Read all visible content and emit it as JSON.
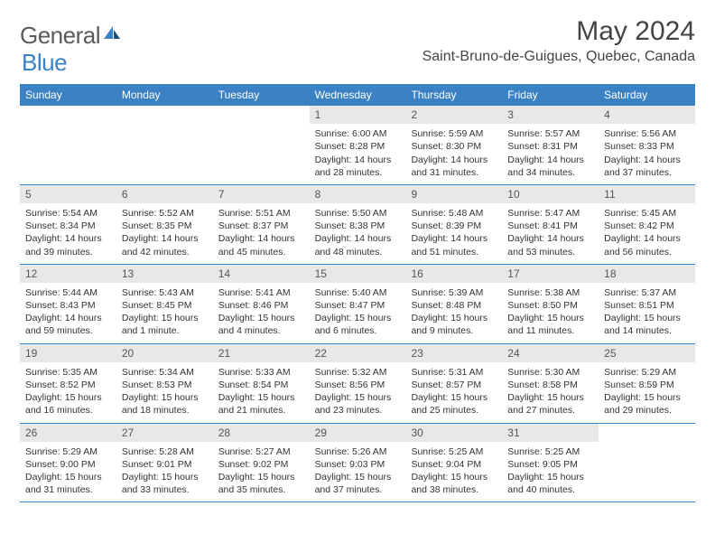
{
  "logo": {
    "text1": "General",
    "text2": "Blue"
  },
  "title": "May 2024",
  "location": "Saint-Bruno-de-Guigues, Quebec, Canada",
  "weekdays": [
    "Sunday",
    "Monday",
    "Tuesday",
    "Wednesday",
    "Thursday",
    "Friday",
    "Saturday"
  ],
  "colors": {
    "header_bg": "#3b82c4",
    "header_text": "#ffffff",
    "day_header_bg": "#e8e8e8",
    "border": "#3b82c4",
    "body_text": "#333333"
  },
  "weeks": [
    [
      {
        "n": "",
        "empty": true
      },
      {
        "n": "",
        "empty": true
      },
      {
        "n": "",
        "empty": true
      },
      {
        "n": "1",
        "sunrise": "Sunrise: 6:00 AM",
        "sunset": "Sunset: 8:28 PM",
        "daylight1": "Daylight: 14 hours",
        "daylight2": "and 28 minutes."
      },
      {
        "n": "2",
        "sunrise": "Sunrise: 5:59 AM",
        "sunset": "Sunset: 8:30 PM",
        "daylight1": "Daylight: 14 hours",
        "daylight2": "and 31 minutes."
      },
      {
        "n": "3",
        "sunrise": "Sunrise: 5:57 AM",
        "sunset": "Sunset: 8:31 PM",
        "daylight1": "Daylight: 14 hours",
        "daylight2": "and 34 minutes."
      },
      {
        "n": "4",
        "sunrise": "Sunrise: 5:56 AM",
        "sunset": "Sunset: 8:33 PM",
        "daylight1": "Daylight: 14 hours",
        "daylight2": "and 37 minutes."
      }
    ],
    [
      {
        "n": "5",
        "sunrise": "Sunrise: 5:54 AM",
        "sunset": "Sunset: 8:34 PM",
        "daylight1": "Daylight: 14 hours",
        "daylight2": "and 39 minutes."
      },
      {
        "n": "6",
        "sunrise": "Sunrise: 5:52 AM",
        "sunset": "Sunset: 8:35 PM",
        "daylight1": "Daylight: 14 hours",
        "daylight2": "and 42 minutes."
      },
      {
        "n": "7",
        "sunrise": "Sunrise: 5:51 AM",
        "sunset": "Sunset: 8:37 PM",
        "daylight1": "Daylight: 14 hours",
        "daylight2": "and 45 minutes."
      },
      {
        "n": "8",
        "sunrise": "Sunrise: 5:50 AM",
        "sunset": "Sunset: 8:38 PM",
        "daylight1": "Daylight: 14 hours",
        "daylight2": "and 48 minutes."
      },
      {
        "n": "9",
        "sunrise": "Sunrise: 5:48 AM",
        "sunset": "Sunset: 8:39 PM",
        "daylight1": "Daylight: 14 hours",
        "daylight2": "and 51 minutes."
      },
      {
        "n": "10",
        "sunrise": "Sunrise: 5:47 AM",
        "sunset": "Sunset: 8:41 PM",
        "daylight1": "Daylight: 14 hours",
        "daylight2": "and 53 minutes."
      },
      {
        "n": "11",
        "sunrise": "Sunrise: 5:45 AM",
        "sunset": "Sunset: 8:42 PM",
        "daylight1": "Daylight: 14 hours",
        "daylight2": "and 56 minutes."
      }
    ],
    [
      {
        "n": "12",
        "sunrise": "Sunrise: 5:44 AM",
        "sunset": "Sunset: 8:43 PM",
        "daylight1": "Daylight: 14 hours",
        "daylight2": "and 59 minutes."
      },
      {
        "n": "13",
        "sunrise": "Sunrise: 5:43 AM",
        "sunset": "Sunset: 8:45 PM",
        "daylight1": "Daylight: 15 hours",
        "daylight2": "and 1 minute."
      },
      {
        "n": "14",
        "sunrise": "Sunrise: 5:41 AM",
        "sunset": "Sunset: 8:46 PM",
        "daylight1": "Daylight: 15 hours",
        "daylight2": "and 4 minutes."
      },
      {
        "n": "15",
        "sunrise": "Sunrise: 5:40 AM",
        "sunset": "Sunset: 8:47 PM",
        "daylight1": "Daylight: 15 hours",
        "daylight2": "and 6 minutes."
      },
      {
        "n": "16",
        "sunrise": "Sunrise: 5:39 AM",
        "sunset": "Sunset: 8:48 PM",
        "daylight1": "Daylight: 15 hours",
        "daylight2": "and 9 minutes."
      },
      {
        "n": "17",
        "sunrise": "Sunrise: 5:38 AM",
        "sunset": "Sunset: 8:50 PM",
        "daylight1": "Daylight: 15 hours",
        "daylight2": "and 11 minutes."
      },
      {
        "n": "18",
        "sunrise": "Sunrise: 5:37 AM",
        "sunset": "Sunset: 8:51 PM",
        "daylight1": "Daylight: 15 hours",
        "daylight2": "and 14 minutes."
      }
    ],
    [
      {
        "n": "19",
        "sunrise": "Sunrise: 5:35 AM",
        "sunset": "Sunset: 8:52 PM",
        "daylight1": "Daylight: 15 hours",
        "daylight2": "and 16 minutes."
      },
      {
        "n": "20",
        "sunrise": "Sunrise: 5:34 AM",
        "sunset": "Sunset: 8:53 PM",
        "daylight1": "Daylight: 15 hours",
        "daylight2": "and 18 minutes."
      },
      {
        "n": "21",
        "sunrise": "Sunrise: 5:33 AM",
        "sunset": "Sunset: 8:54 PM",
        "daylight1": "Daylight: 15 hours",
        "daylight2": "and 21 minutes."
      },
      {
        "n": "22",
        "sunrise": "Sunrise: 5:32 AM",
        "sunset": "Sunset: 8:56 PM",
        "daylight1": "Daylight: 15 hours",
        "daylight2": "and 23 minutes."
      },
      {
        "n": "23",
        "sunrise": "Sunrise: 5:31 AM",
        "sunset": "Sunset: 8:57 PM",
        "daylight1": "Daylight: 15 hours",
        "daylight2": "and 25 minutes."
      },
      {
        "n": "24",
        "sunrise": "Sunrise: 5:30 AM",
        "sunset": "Sunset: 8:58 PM",
        "daylight1": "Daylight: 15 hours",
        "daylight2": "and 27 minutes."
      },
      {
        "n": "25",
        "sunrise": "Sunrise: 5:29 AM",
        "sunset": "Sunset: 8:59 PM",
        "daylight1": "Daylight: 15 hours",
        "daylight2": "and 29 minutes."
      }
    ],
    [
      {
        "n": "26",
        "sunrise": "Sunrise: 5:29 AM",
        "sunset": "Sunset: 9:00 PM",
        "daylight1": "Daylight: 15 hours",
        "daylight2": "and 31 minutes."
      },
      {
        "n": "27",
        "sunrise": "Sunrise: 5:28 AM",
        "sunset": "Sunset: 9:01 PM",
        "daylight1": "Daylight: 15 hours",
        "daylight2": "and 33 minutes."
      },
      {
        "n": "28",
        "sunrise": "Sunrise: 5:27 AM",
        "sunset": "Sunset: 9:02 PM",
        "daylight1": "Daylight: 15 hours",
        "daylight2": "and 35 minutes."
      },
      {
        "n": "29",
        "sunrise": "Sunrise: 5:26 AM",
        "sunset": "Sunset: 9:03 PM",
        "daylight1": "Daylight: 15 hours",
        "daylight2": "and 37 minutes."
      },
      {
        "n": "30",
        "sunrise": "Sunrise: 5:25 AM",
        "sunset": "Sunset: 9:04 PM",
        "daylight1": "Daylight: 15 hours",
        "daylight2": "and 38 minutes."
      },
      {
        "n": "31",
        "sunrise": "Sunrise: 5:25 AM",
        "sunset": "Sunset: 9:05 PM",
        "daylight1": "Daylight: 15 hours",
        "daylight2": "and 40 minutes."
      },
      {
        "n": "",
        "empty": true
      }
    ]
  ]
}
